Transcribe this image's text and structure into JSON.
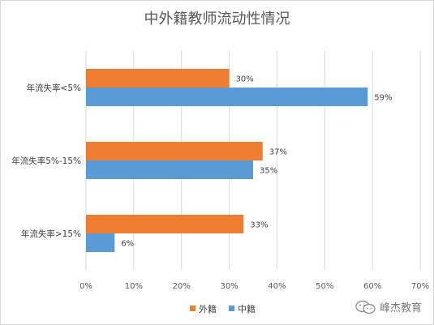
{
  "chart_data": {
    "type": "bar",
    "orientation": "horizontal",
    "title": "中外籍教师流动性情况",
    "categories": [
      "年流失率<5%",
      "年流失率5%-15%",
      "年流失率>15%"
    ],
    "series": [
      {
        "name": "外籍",
        "color": "#ED7D31",
        "values": [
          30,
          37,
          33
        ],
        "labels": [
          "30%",
          "37%",
          "33%"
        ]
      },
      {
        "name": "中籍",
        "color": "#5B9BD5",
        "values": [
          59,
          35,
          6
        ],
        "labels": [
          "59%",
          "35%",
          "6%"
        ]
      }
    ],
    "xlim": [
      0,
      70
    ],
    "xticks": [
      0,
      10,
      20,
      30,
      40,
      50,
      60,
      70
    ],
    "xtick_labels": [
      "0%",
      "10%",
      "20%",
      "30%",
      "40%",
      "50%",
      "60%",
      "70%"
    ],
    "grid": true,
    "legend_position": "bottom"
  },
  "watermark": {
    "text": "峰杰教育"
  }
}
